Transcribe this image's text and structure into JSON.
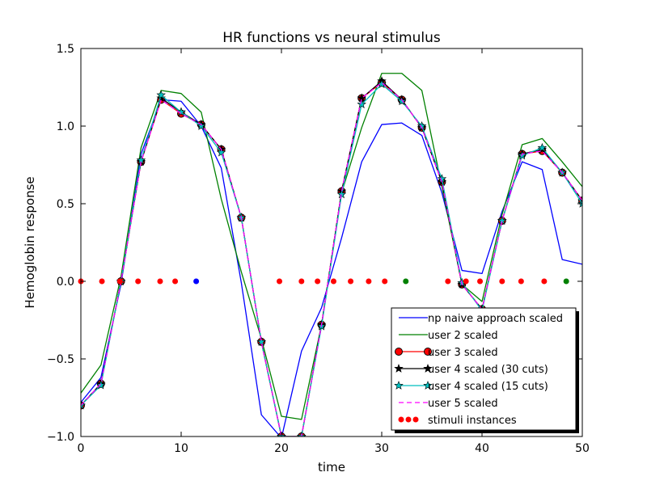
{
  "chart_data": {
    "type": "line",
    "title": "HR functions vs neural stimulus",
    "xlabel": "time",
    "ylabel": "Hemoglobin response",
    "xlim": [
      0,
      50
    ],
    "ylim": [
      -1.0,
      1.5
    ],
    "x_ticks": [
      0,
      10,
      20,
      30,
      40,
      50
    ],
    "x_tick_labels": [
      "0",
      "10",
      "20",
      "30",
      "40",
      "50"
    ],
    "y_ticks": [
      -1.0,
      -0.5,
      0.0,
      0.5,
      1.0,
      1.5
    ],
    "y_tick_labels": [
      "−1.0",
      "−0.5",
      "0.0",
      "0.5",
      "1.0",
      "1.5"
    ],
    "grid": false,
    "legend_position": "lower-right",
    "series": [
      {
        "name": "np naive approach scaled",
        "color": "#0000ff",
        "style": "line",
        "x": [
          0,
          2,
          4,
          6,
          8,
          10,
          12,
          14,
          16,
          18,
          20,
          22,
          24,
          26,
          28,
          30,
          32,
          34,
          36,
          38,
          40,
          42,
          44,
          46,
          48,
          50
        ],
        "y": [
          -0.78,
          -0.62,
          -0.02,
          0.82,
          1.17,
          1.16,
          1.0,
          0.73,
          -0.01,
          -0.86,
          -1.01,
          -0.45,
          -0.17,
          0.28,
          0.77,
          1.01,
          1.02,
          0.94,
          0.57,
          0.07,
          0.05,
          0.45,
          0.77,
          0.72,
          0.14,
          0.11
        ]
      },
      {
        "name": "user 2 scaled",
        "color": "#008000",
        "style": "line",
        "x": [
          0,
          2,
          4,
          6,
          8,
          10,
          12,
          14,
          16,
          18,
          20,
          22,
          24,
          26,
          28,
          30,
          32,
          34,
          36,
          38,
          40,
          42,
          44,
          46,
          48,
          50
        ],
        "y": [
          -0.72,
          -0.54,
          0.03,
          0.86,
          1.23,
          1.21,
          1.09,
          0.53,
          0.06,
          -0.37,
          -0.87,
          -0.89,
          -0.28,
          0.57,
          0.99,
          1.34,
          1.34,
          1.23,
          0.61,
          -0.02,
          -0.13,
          0.43,
          0.88,
          0.92,
          0.77,
          0.61
        ]
      },
      {
        "name": "user 3 scaled",
        "color": "#ff0000",
        "style": "line-circle",
        "x": [
          0,
          2,
          4,
          6,
          8,
          10,
          12,
          14,
          16,
          18,
          20,
          22,
          24,
          26,
          28,
          30,
          32,
          34,
          36,
          38,
          40,
          42,
          44,
          46,
          48,
          50
        ],
        "y": [
          -0.8,
          -0.66,
          0.0,
          0.77,
          1.17,
          1.08,
          1.01,
          0.85,
          0.41,
          -0.39,
          -1.0,
          -1.0,
          -0.28,
          0.58,
          1.18,
          1.28,
          1.17,
          0.99,
          0.64,
          -0.02,
          -0.18,
          0.39,
          0.82,
          0.84,
          0.7,
          0.52
        ]
      },
      {
        "name": "user 4 scaled (30 cuts)",
        "color": "#000000",
        "style": "line-star",
        "x": [
          0,
          2,
          4,
          6,
          8,
          10,
          12,
          14,
          16,
          18,
          20,
          22,
          24,
          26,
          28,
          30,
          32,
          34,
          36,
          38,
          40,
          42,
          44,
          46,
          48,
          50
        ],
        "y": [
          -0.8,
          -0.66,
          0.0,
          0.77,
          1.18,
          1.09,
          1.01,
          0.85,
          0.41,
          -0.39,
          -1.0,
          -1.0,
          -0.28,
          0.58,
          1.18,
          1.29,
          1.17,
          0.99,
          0.64,
          -0.02,
          -0.18,
          0.39,
          0.82,
          0.85,
          0.7,
          0.52
        ]
      },
      {
        "name": "user 4 scaled (15 cuts)",
        "color": "#00bfbf",
        "style": "line-star",
        "x": [
          0,
          2,
          4,
          6,
          8,
          10,
          12,
          14,
          16,
          18,
          20,
          22,
          24,
          26,
          28,
          30,
          32,
          34,
          36,
          38,
          40,
          42,
          44,
          46,
          48,
          50
        ],
        "y": [
          -0.8,
          -0.67,
          0.0,
          0.78,
          1.2,
          1.09,
          1.0,
          0.83,
          0.41,
          -0.39,
          -1.0,
          -1.0,
          -0.29,
          0.56,
          1.14,
          1.27,
          1.16,
          1.0,
          0.66,
          -0.01,
          -0.19,
          0.39,
          0.81,
          0.86,
          0.7,
          0.5
        ]
      },
      {
        "name": "user 5 scaled",
        "color": "#ff00ff",
        "style": "dash",
        "x": [
          0,
          2,
          4,
          6,
          8,
          10,
          12,
          14,
          16,
          18,
          20,
          22,
          24,
          26,
          28,
          30,
          32,
          34,
          36,
          38,
          40,
          42,
          44,
          46,
          48,
          50
        ],
        "y": [
          -0.8,
          -0.66,
          0.0,
          0.77,
          1.17,
          1.08,
          1.01,
          0.85,
          0.41,
          -0.39,
          -1.0,
          -1.0,
          -0.28,
          0.58,
          1.18,
          1.28,
          1.17,
          0.99,
          0.64,
          -0.02,
          -0.18,
          0.39,
          0.82,
          0.84,
          0.7,
          0.52
        ]
      }
    ],
    "stimuli": {
      "name": "stimuli instances",
      "y": 0.0,
      "points": [
        {
          "x": 0.0,
          "color": "#ff0000"
        },
        {
          "x": 2.1,
          "color": "#ff0000"
        },
        {
          "x": 3.9,
          "color": "#ff0000"
        },
        {
          "x": 5.7,
          "color": "#ff0000"
        },
        {
          "x": 7.9,
          "color": "#ff0000"
        },
        {
          "x": 9.4,
          "color": "#ff0000"
        },
        {
          "x": 11.5,
          "color": "#0000ff"
        },
        {
          "x": 19.8,
          "color": "#ff0000"
        },
        {
          "x": 22.0,
          "color": "#ff0000"
        },
        {
          "x": 23.6,
          "color": "#ff0000"
        },
        {
          "x": 25.2,
          "color": "#ff0000"
        },
        {
          "x": 26.9,
          "color": "#ff0000"
        },
        {
          "x": 28.7,
          "color": "#ff0000"
        },
        {
          "x": 30.3,
          "color": "#ff0000"
        },
        {
          "x": 32.4,
          "color": "#008000"
        },
        {
          "x": 36.6,
          "color": "#ff0000"
        },
        {
          "x": 38.4,
          "color": "#ff0000"
        },
        {
          "x": 39.8,
          "color": "#ff0000"
        },
        {
          "x": 42.0,
          "color": "#ff0000"
        },
        {
          "x": 43.9,
          "color": "#ff0000"
        },
        {
          "x": 46.2,
          "color": "#ff0000"
        },
        {
          "x": 48.4,
          "color": "#008000"
        }
      ]
    }
  }
}
